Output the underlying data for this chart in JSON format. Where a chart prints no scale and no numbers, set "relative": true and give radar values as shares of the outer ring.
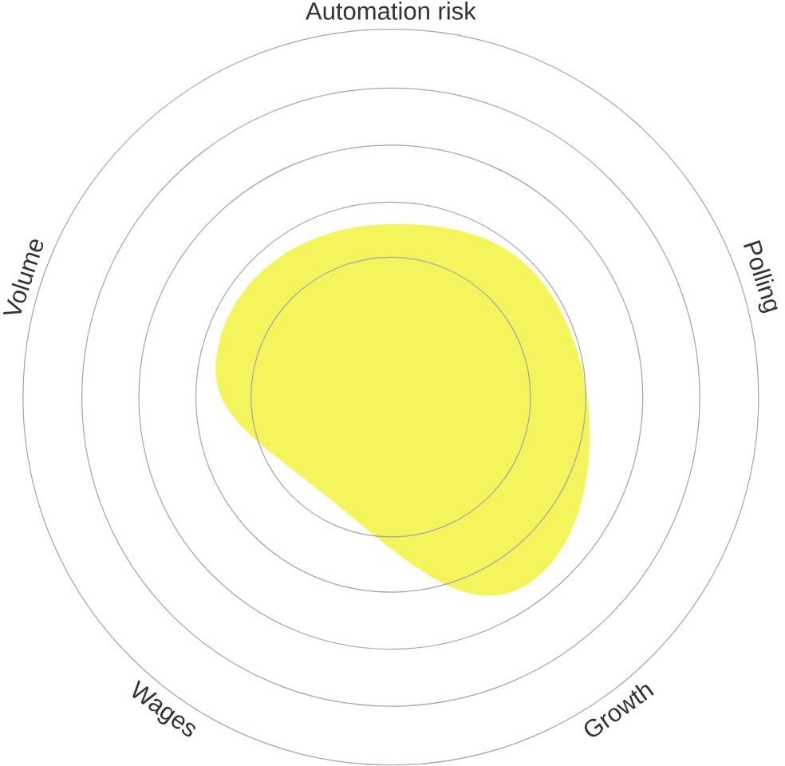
{
  "chart_data": {
    "type": "radar",
    "relative": true,
    "grid": true,
    "categories": [
      "Automation risk",
      "Polling",
      "Growth",
      "Wages",
      "Volume"
    ],
    "series": [
      {
        "color": "#f4f45c",
        "values": [
          0.47,
          0.52,
          0.63,
          0.32,
          0.49
        ]
      }
    ]
  }
}
